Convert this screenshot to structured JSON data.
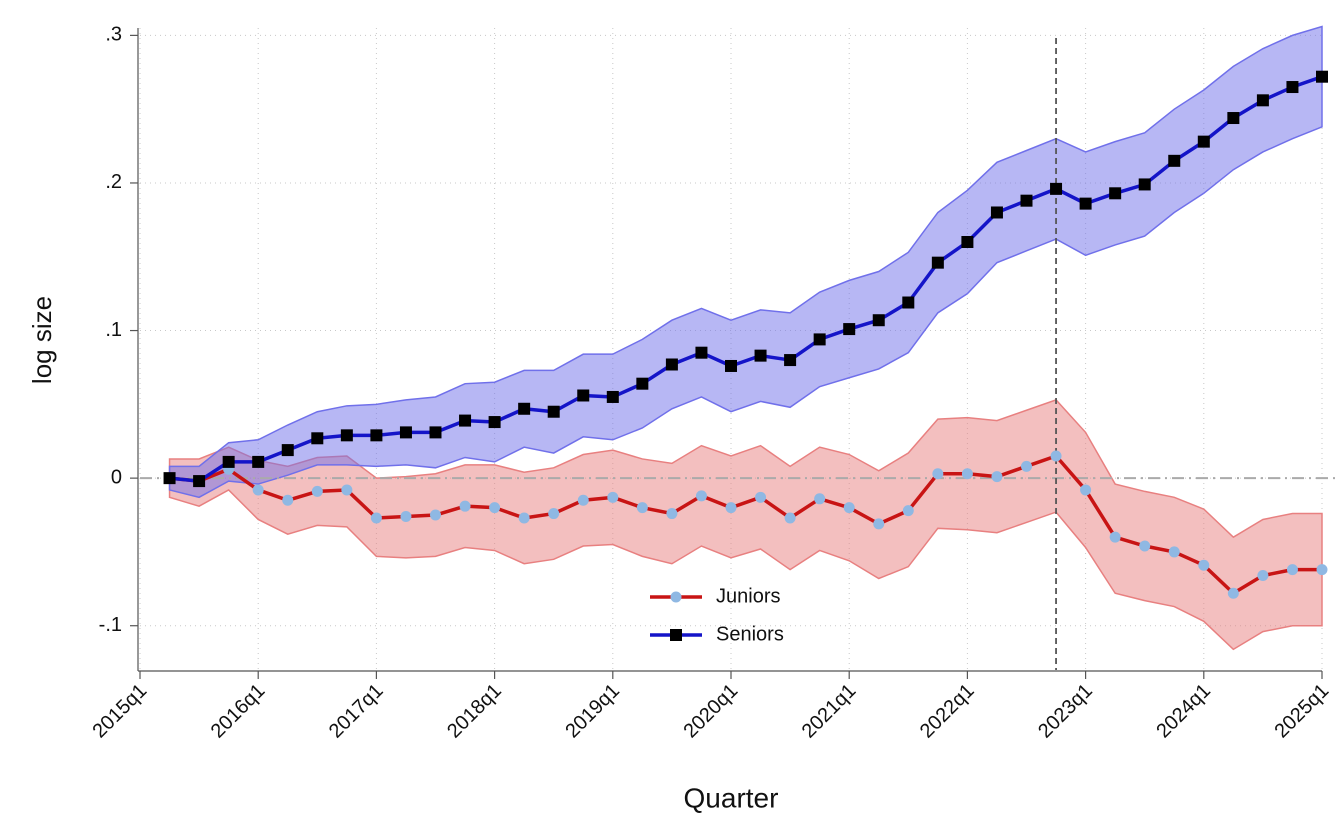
{
  "chart_data": {
    "type": "line",
    "xlabel": "Quarter",
    "ylabel": "log size",
    "categories": [
      "2015q1",
      null,
      null,
      null,
      "2016q1",
      null,
      null,
      null,
      "2017q1",
      null,
      null,
      null,
      "2018q1",
      null,
      null,
      null,
      "2019q1",
      null,
      null,
      null,
      "2020q1",
      null,
      null,
      null,
      "2021q1",
      null,
      null,
      null,
      "2022q1",
      null,
      null,
      null,
      "2023q1",
      null,
      null,
      null,
      "2024q1",
      null,
      null,
      null,
      "2025q1"
    ],
    "ylim": [
      -0.13,
      0.305
    ],
    "yticks": [
      {
        "value": -0.1,
        "label": "-.1"
      },
      0,
      {
        "value": 0.1,
        "label": ".1"
      },
      {
        "value": 0.2,
        "label": ".2"
      },
      {
        "value": 0.3,
        "label": ".3"
      }
    ],
    "grid": true,
    "hline": 0,
    "vline": "2022q4",
    "legend": "lower center",
    "series": [
      {
        "name": "Juniors",
        "color": "#c81414",
        "marker": "circle",
        "marker_color": "#8fb8e3",
        "band_color": "#e88080",
        "values": [
          null,
          0,
          -0.002,
          0.006,
          -0.008,
          -0.015,
          -0.009,
          -0.008,
          -0.027,
          -0.026,
          -0.025,
          -0.019,
          -0.02,
          -0.027,
          -0.024,
          -0.015,
          -0.013,
          -0.02,
          -0.024,
          -0.012,
          -0.02,
          -0.013,
          -0.027,
          -0.014,
          -0.02,
          -0.031,
          -0.022,
          0.003,
          0.003,
          0.001,
          0.008,
          0.015,
          -0.008,
          -0.04,
          -0.046,
          -0.05,
          -0.059,
          -0.078,
          -0.066,
          -0.062,
          -0.062
        ],
        "upper": [
          null,
          0.013,
          0.013,
          0.021,
          0.012,
          0.008,
          0.014,
          0.015,
          0.0,
          0.001,
          0.003,
          0.009,
          0.009,
          0.004,
          0.007,
          0.016,
          0.019,
          0.013,
          0.01,
          0.022,
          0.015,
          0.022,
          0.008,
          0.021,
          0.016,
          0.005,
          0.017,
          0.04,
          0.041,
          0.039,
          0.046,
          0.053,
          0.031,
          -0.004,
          -0.009,
          -0.013,
          -0.021,
          -0.04,
          -0.028,
          -0.024,
          -0.024
        ],
        "lower": [
          null,
          -0.013,
          -0.019,
          -0.008,
          -0.028,
          -0.038,
          -0.032,
          -0.033,
          -0.053,
          -0.054,
          -0.053,
          -0.047,
          -0.049,
          -0.058,
          -0.055,
          -0.046,
          -0.045,
          -0.053,
          -0.058,
          -0.046,
          -0.054,
          -0.048,
          -0.062,
          -0.049,
          -0.056,
          -0.068,
          -0.06,
          -0.034,
          -0.035,
          -0.037,
          -0.03,
          -0.023,
          -0.047,
          -0.078,
          -0.083,
          -0.087,
          -0.097,
          -0.116,
          -0.104,
          -0.1,
          -0.1
        ]
      },
      {
        "name": "Seniors",
        "color": "#1414c8",
        "marker": "square",
        "marker_color": "#000000",
        "band_color": "#7070ea",
        "values": [
          null,
          0,
          -0.002,
          0.011,
          0.011,
          0.019,
          0.027,
          0.029,
          0.029,
          0.031,
          0.031,
          0.039,
          0.038,
          0.047,
          0.045,
          0.056,
          0.055,
          0.064,
          0.077,
          0.085,
          0.076,
          0.083,
          0.08,
          0.094,
          0.101,
          0.107,
          0.119,
          0.146,
          0.16,
          0.18,
          0.188,
          0.196,
          0.186,
          0.193,
          0.199,
          0.215,
          0.228,
          0.244,
          0.256,
          0.265,
          0.272
        ],
        "upper": [
          null,
          0.008,
          0.008,
          0.024,
          0.026,
          0.036,
          0.045,
          0.049,
          0.05,
          0.053,
          0.055,
          0.064,
          0.065,
          0.073,
          0.073,
          0.084,
          0.084,
          0.094,
          0.107,
          0.115,
          0.107,
          0.114,
          0.112,
          0.126,
          0.134,
          0.14,
          0.153,
          0.18,
          0.195,
          0.214,
          0.222,
          0.23,
          0.221,
          0.228,
          0.234,
          0.25,
          0.263,
          0.279,
          0.291,
          0.3,
          0.306
        ],
        "lower": [
          null,
          -0.008,
          -0.013,
          -0.002,
          -0.004,
          0.002,
          0.009,
          0.009,
          0.008,
          0.009,
          0.007,
          0.014,
          0.011,
          0.021,
          0.017,
          0.028,
          0.026,
          0.034,
          0.047,
          0.055,
          0.045,
          0.052,
          0.048,
          0.062,
          0.068,
          0.074,
          0.085,
          0.112,
          0.125,
          0.146,
          0.154,
          0.162,
          0.151,
          0.158,
          0.164,
          0.18,
          0.193,
          0.209,
          0.221,
          0.23,
          0.238
        ]
      }
    ]
  }
}
